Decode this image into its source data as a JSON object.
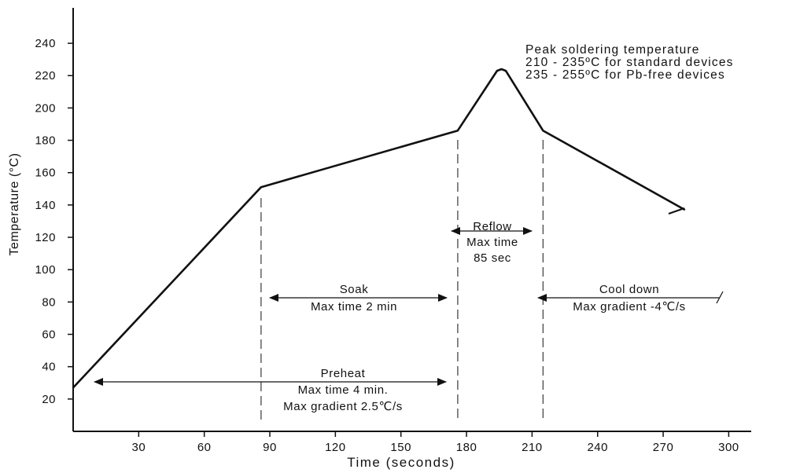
{
  "chart_data": {
    "type": "line",
    "title": "",
    "xlabel": "Time (seconds)",
    "ylabel": "Temperature (°C)",
    "xlim": [
      0,
      310
    ],
    "ylim": [
      0,
      255
    ],
    "x_ticks": [
      30,
      60,
      90,
      120,
      150,
      180,
      210,
      240,
      270,
      300
    ],
    "y_ticks": [
      20,
      40,
      60,
      80,
      100,
      120,
      140,
      160,
      180,
      200,
      220,
      240
    ],
    "grid": false,
    "series": [
      {
        "x": [
          0,
          86,
          176,
          194,
          196,
          198,
          215,
          280
        ],
        "y": [
          27,
          151,
          186,
          223,
          224,
          223,
          186,
          137
        ]
      }
    ],
    "phase_boundaries_x": [
      86,
      176,
      215
    ],
    "annotations": {
      "peak": [
        "Peak soldering temperature",
        "210 - 235ºC for standard devices",
        "235 - 255ºC for Pb-free devices"
      ],
      "reflow": [
        "Reflow",
        "Max time",
        "85 sec"
      ],
      "soak": [
        "Soak",
        "Max time 2 min"
      ],
      "cool_down": [
        "Cool down",
        "Max gradient -4℃/s"
      ],
      "preheat": [
        "Preheat",
        "Max time 4 min.",
        "Max gradient 2.5℃/s"
      ]
    }
  }
}
